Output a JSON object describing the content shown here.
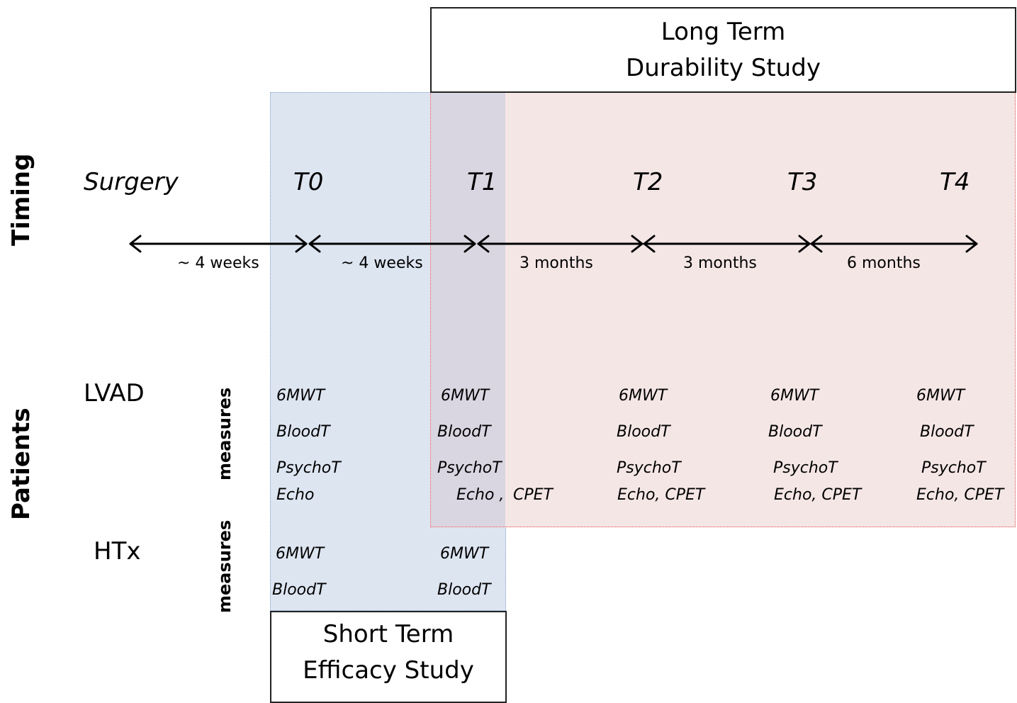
{
  "studies": {
    "long_term": [
      "Long Term",
      "Durability Study"
    ],
    "short_term": [
      "Short Term",
      "Efficacy Study"
    ]
  },
  "axis_labels": {
    "timing": "Timing",
    "patients": "Patients"
  },
  "timepoints": [
    "Surgery",
    "T0",
    "T1",
    "T2",
    "T3",
    "T4"
  ],
  "intervals": [
    "~ 4 weeks",
    "~ 4 weeks",
    "3 months",
    "3 months",
    "6 months"
  ],
  "groups": {
    "lvad": "LVAD",
    "htx": "HTx",
    "measures": "measures"
  },
  "lvad_measures": {
    "t0": [
      "6MWT",
      "BloodT",
      "PsychoT",
      "Echo"
    ],
    "t1": [
      "6MWT",
      "BloodT",
      "PsychoT",
      "Echo ,",
      "CPET"
    ],
    "t2": [
      "6MWT",
      "BloodT",
      "PsychoT",
      "Echo, CPET"
    ],
    "t3": [
      "6MWT",
      "BloodT",
      "PsychoT",
      "Echo, CPET"
    ],
    "t4": [
      "6MWT",
      "BloodT",
      "PsychoT",
      "Echo, CPET"
    ]
  },
  "htx_measures": {
    "t0": [
      "6MWT",
      "BloodT"
    ],
    "t1": [
      "6MWT",
      "BloodT"
    ]
  },
  "colors": {
    "short_term_region": "#dde5f1",
    "long_term_region": "#f5e6e6",
    "overlap": "#d9d6e1"
  }
}
